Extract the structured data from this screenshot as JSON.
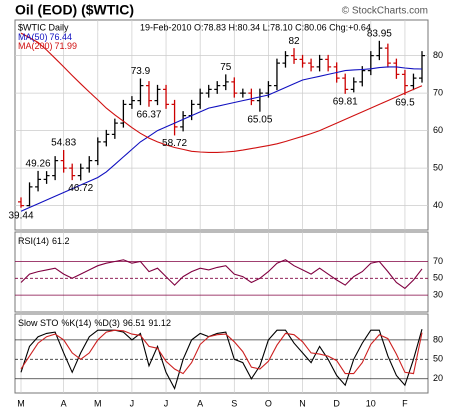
{
  "chart_data": [
    {
      "type": "ohlc",
      "title": "Oil (EOD) ($WTIC)",
      "credit": "© StockCharts.com",
      "subtitle": "$WTIC Daily",
      "quote": "19-Feb-2010 O:78.83 H:80.34 L:78.10 C:80.06 Chg:+0.64",
      "categories": [
        "M",
        null,
        null,
        null,
        null,
        "A",
        null,
        null,
        null,
        "M",
        null,
        null,
        null,
        "J",
        null,
        null,
        null,
        "J",
        null,
        null,
        null,
        "A",
        null,
        null,
        null,
        "S",
        null,
        null,
        null,
        "O",
        null,
        null,
        null,
        "N",
        null,
        null,
        null,
        "D",
        null,
        null,
        null,
        "10",
        null,
        null,
        null,
        "F",
        null,
        null
      ],
      "open": [
        41,
        40,
        45,
        47,
        48,
        52,
        50,
        48,
        50,
        52,
        57,
        59,
        62,
        67,
        68,
        72,
        68,
        71,
        67,
        61,
        64,
        67,
        70,
        71,
        72,
        73,
        70,
        70,
        68,
        70,
        72,
        78,
        80,
        79,
        78,
        77,
        79,
        77,
        74,
        71,
        73,
        76,
        80,
        82,
        78,
        75,
        72,
        74
      ],
      "high": [
        42.2,
        46.2,
        49.26,
        49.2,
        53.2,
        54.83,
        51.2,
        51.2,
        53.2,
        58.2,
        60.2,
        63.2,
        68.2,
        69.2,
        73.9,
        73.2,
        72.2,
        72.2,
        68.2,
        65.2,
        68.2,
        71.2,
        72.2,
        73.2,
        75,
        74.2,
        71.2,
        71.2,
        71.2,
        73.2,
        79.2,
        81.2,
        82,
        80.2,
        79.2,
        80.2,
        80.2,
        78.2,
        75.2,
        74.2,
        77.2,
        81.2,
        83.95,
        83.2,
        79.2,
        76.2,
        75.2,
        81.2
      ],
      "low": [
        39.44,
        39.8,
        43.8,
        45.8,
        46.8,
        48.8,
        46.8,
        46.72,
        48.8,
        50.8,
        55.8,
        57.8,
        60.8,
        65.8,
        66.8,
        66.37,
        66.8,
        65.8,
        58.72,
        59.8,
        62.8,
        65.8,
        68.8,
        69.8,
        70.8,
        68.8,
        68.8,
        66.8,
        65.05,
        68.8,
        70.8,
        76.8,
        77.8,
        76.8,
        75.8,
        75.8,
        75.8,
        72.8,
        69.81,
        70.2,
        71.8,
        74.8,
        78.8,
        76.8,
        73.8,
        69.5,
        70.8,
        72.8
      ],
      "close": [
        40,
        45,
        47,
        48,
        52,
        50,
        48,
        50,
        52,
        57,
        59,
        62,
        67,
        68,
        72,
        68,
        71,
        67,
        61,
        64,
        67,
        70,
        71,
        72,
        73,
        70,
        70,
        68,
        70,
        72,
        78,
        80,
        79,
        78,
        77,
        79,
        77,
        74,
        71,
        73,
        76,
        80,
        82,
        78,
        75,
        72,
        74,
        80
      ],
      "up_color": "#000000",
      "down_color": "#cc0000",
      "series": [
        {
          "name": "MA(50)",
          "color": "#1010c0",
          "last": 76.44,
          "values": [
            38.5,
            39.5,
            40.5,
            41.5,
            42.5,
            43.5,
            44.5,
            45.5,
            46.5,
            47.5,
            49,
            51,
            53,
            55,
            57,
            58.5,
            60,
            61,
            62,
            63,
            64,
            65,
            66,
            66.5,
            67,
            67.5,
            68,
            68.5,
            69,
            69.5,
            70.5,
            71.5,
            72.5,
            73.5,
            74,
            74.5,
            75,
            75.5,
            76,
            76.2,
            76.3,
            76.5,
            76.8,
            77,
            77,
            76.7,
            76.5,
            76.44
          ]
        },
        {
          "name": "MA(200)",
          "color": "#d01010",
          "last": 71.99,
          "values": [
            86,
            84.8,
            83.5,
            81.5,
            79.3,
            77,
            74.7,
            72.5,
            70.3,
            68.2,
            66,
            64.2,
            62.5,
            60.8,
            59.3,
            58,
            57,
            56.2,
            55.5,
            55,
            54.5,
            54.3,
            54.2,
            54.2,
            54.3,
            54.5,
            54.8,
            55.2,
            55.6,
            56,
            56.5,
            57.1,
            57.8,
            58.5,
            59.2,
            60,
            61,
            62,
            63,
            64,
            65,
            66,
            67,
            68,
            69,
            70,
            71,
            71.99
          ]
        }
      ],
      "annotations": [
        {
          "value": 39.44,
          "at": 0
        },
        {
          "value": 49.26,
          "at": 2
        },
        {
          "value": 54.83,
          "at": 5
        },
        {
          "value": 46.72,
          "at": 7
        },
        {
          "value": 73.9,
          "at": 14
        },
        {
          "value": 66.37,
          "at": 15
        },
        {
          "value": 58.72,
          "at": 18
        },
        {
          "value": 75,
          "at": 24
        },
        {
          "value": 65.05,
          "at": 28
        },
        {
          "value": 82,
          "at": 32
        },
        {
          "value": 69.81,
          "at": 38
        },
        {
          "value": 83.95,
          "at": 42
        },
        {
          "value": 69.5,
          "at": 45
        }
      ],
      "ylim": [
        33.5,
        89.5
      ],
      "yticks": [
        40,
        50,
        60,
        70,
        80
      ],
      "grid": true
    },
    {
      "type": "line",
      "title": "RSI(14)",
      "last": 61.2,
      "series": [
        {
          "color": "#800040",
          "values": [
            45,
            55,
            58,
            60,
            62,
            55,
            50,
            55,
            60,
            65,
            68,
            70,
            72,
            68,
            70,
            58,
            62,
            52,
            42,
            52,
            58,
            62,
            60,
            63,
            65,
            55,
            52,
            45,
            50,
            58,
            68,
            72,
            65,
            60,
            55,
            62,
            55,
            48,
            42,
            52,
            58,
            68,
            70,
            58,
            45,
            38,
            48,
            61.2
          ]
        }
      ],
      "ylim": [
        10,
        105
      ],
      "yticks": [
        30,
        50,
        70
      ],
      "grid": true
    },
    {
      "type": "line",
      "title": "Slow STO",
      "series": [
        {
          "name": "%K(14)",
          "color": "#000000",
          "last": 96.51,
          "values": [
            30,
            70,
            85,
            90,
            92,
            60,
            30,
            60,
            85,
            95,
            95,
            95,
            92,
            80,
            90,
            40,
            70,
            30,
            5,
            50,
            80,
            90,
            85,
            90,
            92,
            50,
            45,
            20,
            40,
            80,
            95,
            95,
            75,
            60,
            45,
            70,
            50,
            25,
            10,
            50,
            75,
            95,
            95,
            55,
            25,
            10,
            50,
            96.51
          ]
        },
        {
          "name": "%D(3)",
          "color": "#cc2020",
          "last": 91.12,
          "values": [
            35,
            55,
            75,
            85,
            89,
            80,
            60,
            50,
            60,
            80,
            92,
            95,
            94,
            89,
            87,
            70,
            67,
            47,
            35,
            28,
            45,
            73,
            85,
            88,
            89,
            77,
            62,
            38,
            35,
            47,
            72,
            90,
            88,
            77,
            60,
            58,
            55,
            48,
            28,
            28,
            45,
            73,
            88,
            82,
            58,
            30,
            28,
            91.12
          ]
        }
      ],
      "ylim": [
        -2,
        120
      ],
      "yticks": [
        20,
        50,
        80
      ],
      "grid": true
    }
  ]
}
